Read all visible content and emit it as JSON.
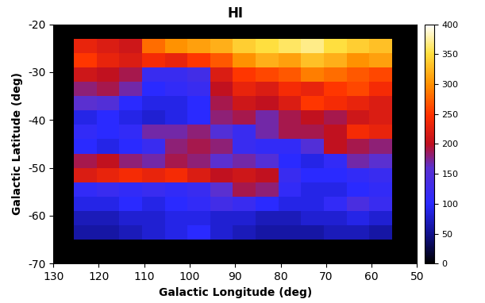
{
  "chart_data": {
    "type": "heatmap",
    "title": "HI",
    "x_label": "Galactic Longitude (deg)",
    "y_label": "Galactic Latitude (deg)",
    "xlim": [
      130,
      50
    ],
    "xticks": [
      130,
      120,
      110,
      100,
      90,
      80,
      70,
      60,
      50
    ],
    "ylim": [
      -70,
      -20
    ],
    "yticks": [
      -70,
      -60,
      -50,
      -40,
      -30,
      -20
    ],
    "x_edges": [
      125.5,
      120.5,
      115.5,
      110.5,
      105.5,
      100.5,
      95.5,
      90.5,
      85.5,
      80.5,
      75.5,
      70.5,
      65.5,
      60.5,
      55.5
    ],
    "y_edges": [
      -65,
      -62,
      -59,
      -56,
      -53,
      -50,
      -47,
      -44,
      -41,
      -38,
      -35,
      -32,
      -29,
      -26,
      -23
    ],
    "cells": [
      [
        60,
        60,
        70,
        80,
        90,
        100,
        80,
        70,
        60,
        60,
        60,
        70,
        70,
        60
      ],
      [
        70,
        70,
        80,
        80,
        90,
        90,
        80,
        80,
        70,
        70,
        80,
        80,
        90,
        80
      ],
      [
        90,
        90,
        100,
        90,
        100,
        110,
        130,
        120,
        100,
        90,
        90,
        110,
        140,
        120
      ],
      [
        110,
        120,
        110,
        120,
        110,
        120,
        160,
        190,
        180,
        110,
        90,
        90,
        100,
        110
      ],
      [
        220,
        230,
        240,
        230,
        240,
        220,
        200,
        210,
        200,
        120,
        100,
        100,
        110,
        120
      ],
      [
        190,
        200,
        180,
        170,
        190,
        180,
        160,
        170,
        150,
        100,
        90,
        110,
        170,
        160
      ],
      [
        100,
        90,
        100,
        120,
        180,
        190,
        180,
        120,
        110,
        110,
        150,
        200,
        190,
        180
      ],
      [
        110,
        100,
        110,
        170,
        170,
        180,
        150,
        120,
        170,
        190,
        190,
        200,
        240,
        230
      ],
      [
        90,
        100,
        90,
        80,
        90,
        100,
        180,
        190,
        170,
        190,
        200,
        190,
        210,
        220
      ],
      [
        160,
        150,
        100,
        90,
        90,
        100,
        190,
        210,
        200,
        220,
        250,
        240,
        230,
        220
      ],
      [
        180,
        190,
        170,
        100,
        110,
        120,
        200,
        230,
        220,
        240,
        230,
        250,
        260,
        240
      ],
      [
        210,
        200,
        190,
        120,
        120,
        130,
        220,
        250,
        260,
        270,
        290,
        280,
        270,
        260
      ],
      [
        250,
        230,
        220,
        240,
        230,
        250,
        270,
        300,
        320,
        310,
        330,
        320,
        300,
        310
      ],
      [
        230,
        220,
        210,
        280,
        300,
        310,
        320,
        340,
        350,
        360,
        370,
        350,
        340,
        330
      ]
    ],
    "colorbar_range": [
      0,
      400
    ],
    "colorbar_ticks": [
      0,
      50,
      100,
      150,
      200,
      250,
      300,
      350,
      400
    ]
  }
}
